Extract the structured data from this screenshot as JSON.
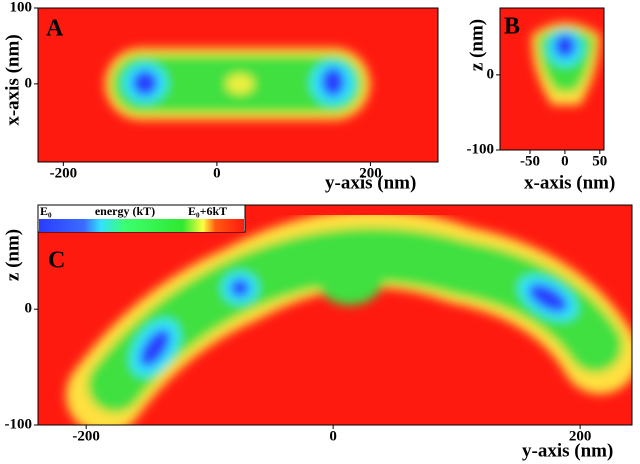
{
  "chart_data": [
    {
      "type": "heatmap",
      "panel_label": "A",
      "xlabel": "y-axis (nm)",
      "ylabel": "x-axis (nm)",
      "xlim": [
        -233,
        288
      ],
      "ylim": [
        -103,
        100
      ],
      "xticks": [
        -200,
        0,
        200
      ],
      "yticks": [
        0,
        100
      ]
    },
    {
      "type": "heatmap",
      "panel_label": "B",
      "xlabel": "x-axis (nm)",
      "ylabel": "z (nm)",
      "xlim": [
        -93,
        56
      ],
      "ylim": [
        -100,
        89
      ],
      "xticks": [
        -50,
        0,
        50
      ],
      "yticks": [
        -100,
        0
      ]
    },
    {
      "type": "heatmap",
      "panel_label": "C",
      "xlabel": "y-axis (nm)",
      "ylabel": "z (nm)",
      "xlim": [
        -239,
        242
      ],
      "ylim": [
        -100,
        90
      ],
      "xticks": [
        -200,
        0,
        200
      ],
      "yticks": [
        -100,
        0
      ],
      "colorbar": {
        "min_label": "E₀",
        "title": "energy (kT)",
        "max_label": "E₀+6kT"
      }
    }
  ]
}
